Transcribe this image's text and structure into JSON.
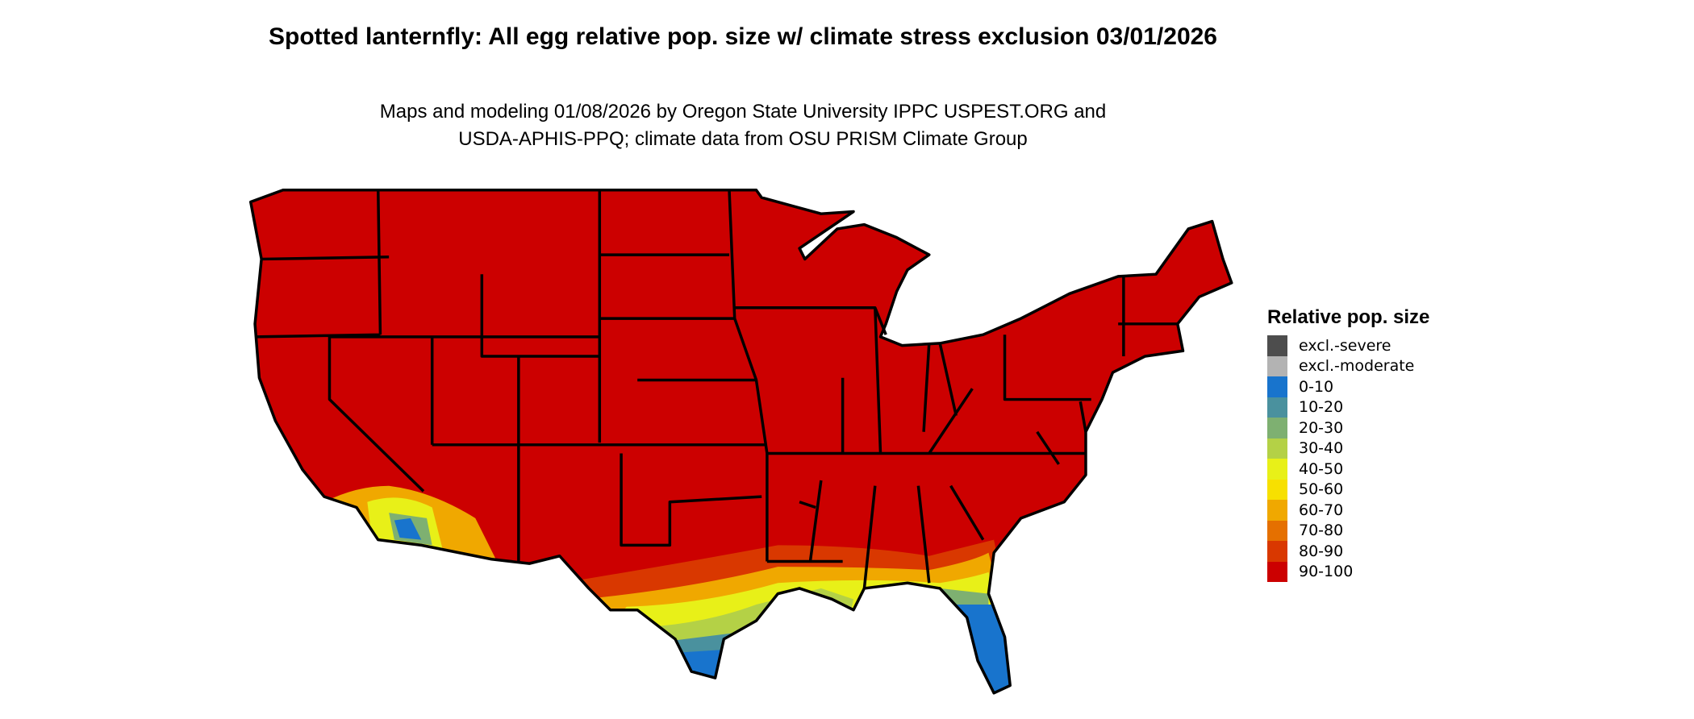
{
  "title": "Spotted lanternfly: All egg relative pop. size w/ climate stress exclusion 03/01/2026",
  "subtitle_line1": "Maps and modeling 01/08/2026 by Oregon State University IPPC USPEST.ORG and",
  "subtitle_line2": "USDA-APHIS-PPQ; climate data from OSU PRISM Climate Group",
  "map": {
    "region": "Contiguous United States",
    "dominant_class": "90-100",
    "border_color": "#000000"
  },
  "legend": {
    "title": "Relative pop. size",
    "items": [
      {
        "label": "excl.-severe",
        "color": "#4d4d4d"
      },
      {
        "label": "excl.-moderate",
        "color": "#b3b3b3"
      },
      {
        "label": "0-10",
        "color": "#1874cd"
      },
      {
        "label": "10-20",
        "color": "#4a919e"
      },
      {
        "label": "20-30",
        "color": "#7eb071"
      },
      {
        "label": "30-40",
        "color": "#b4d146"
      },
      {
        "label": "40-50",
        "color": "#e8f018"
      },
      {
        "label": "50-60",
        "color": "#f7e000"
      },
      {
        "label": "60-70",
        "color": "#f0a800"
      },
      {
        "label": "70-80",
        "color": "#e57000"
      },
      {
        "label": "80-90",
        "color": "#d93800"
      },
      {
        "label": "90-100",
        "color": "#cc0000"
      }
    ]
  }
}
